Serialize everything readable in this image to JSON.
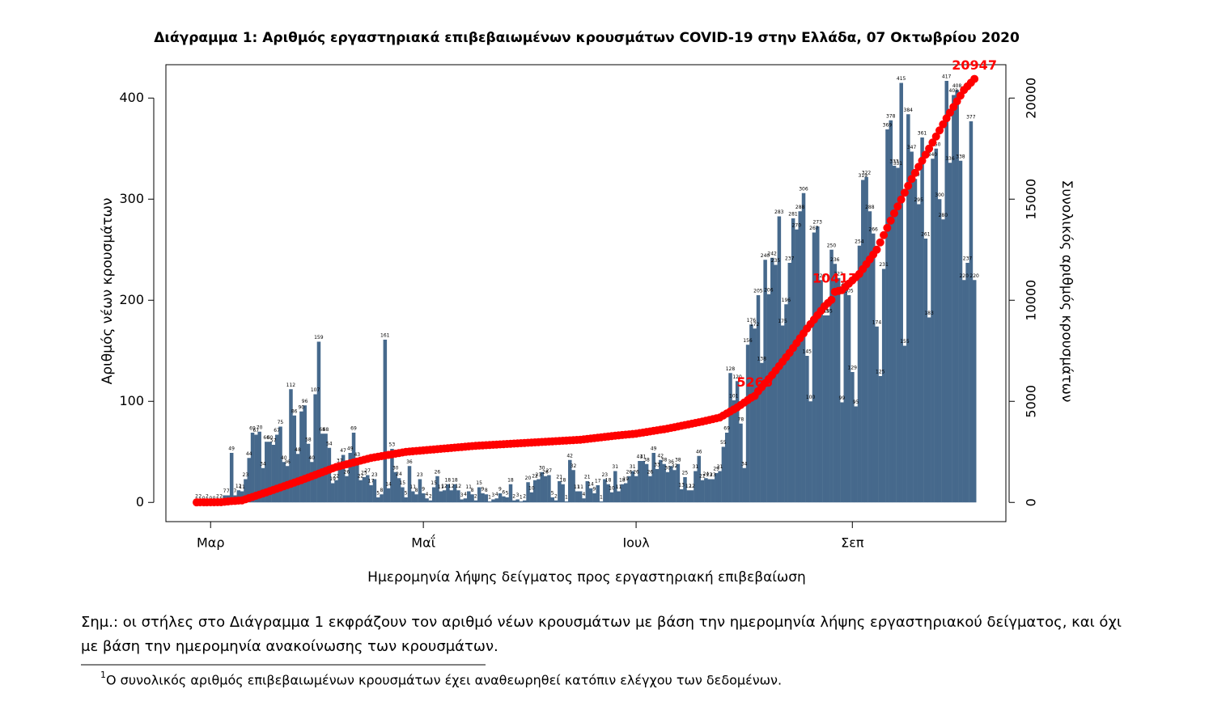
{
  "chart_data": {
    "type": "bar",
    "title": "Διάγραμμα 1: Αριθμός εργαστηριακά επιβεβαιωμένων κρουσμάτων COVID-19 στην Ελλάδα, 07 Οκτωβρίου 2020",
    "x_label": "Ημερομηνία λήψης δείγματος προς εργαστηριακή επιβεβαίωση",
    "y_label": "Αριθμός νέων κρουσμάτων",
    "y2_label": "Συνολικός αριθμός κρουσμάτων",
    "categories": [
      null,
      null,
      null,
      null,
      "Μαρ",
      null,
      null,
      null,
      null,
      null,
      null,
      null,
      null,
      null,
      null,
      null,
      null,
      null,
      null,
      null,
      null,
      null,
      null,
      null,
      null,
      null,
      null,
      null,
      null,
      null,
      null,
      null,
      null,
      null,
      null,
      null,
      null,
      null,
      null,
      null,
      null,
      null,
      null,
      null,
      null,
      null,
      null,
      null,
      null,
      null,
      null,
      null,
      null,
      null,
      null,
      null,
      null,
      null,
      null,
      null,
      null,
      null,
      null,
      null,
      null,
      "Μαΐ",
      null,
      null,
      null,
      null,
      null,
      null,
      null,
      null,
      null,
      null,
      null,
      null,
      null,
      null,
      null,
      null,
      null,
      null,
      null,
      null,
      null,
      null,
      null,
      null,
      null,
      null,
      null,
      null,
      null,
      null,
      null,
      null,
      null,
      null,
      null,
      null,
      null,
      null,
      null,
      null,
      null,
      null,
      null,
      null,
      null,
      null,
      null,
      null,
      null,
      null,
      null,
      null,
      null,
      null,
      null,
      null,
      null,
      null,
      null,
      null,
      "Ιουλ",
      null,
      null,
      null,
      null,
      null,
      null,
      null,
      null,
      null,
      null,
      null,
      null,
      null,
      null,
      null,
      null,
      null,
      null,
      null,
      null,
      null,
      null,
      null,
      null,
      null,
      null,
      null,
      null,
      null,
      null,
      null,
      null,
      null,
      null,
      null,
      null,
      null,
      null,
      null,
      null,
      null,
      null,
      null,
      null,
      null,
      null,
      null,
      null,
      null,
      null,
      null,
      null,
      null,
      null,
      null,
      null,
      null,
      null,
      null,
      null,
      null,
      "Σεπ",
      null,
      null,
      null,
      null,
      null,
      null,
      null,
      null,
      null,
      null,
      null,
      null,
      null,
      null,
      null,
      null,
      null,
      null,
      null,
      null,
      null,
      null,
      null,
      null,
      null,
      null,
      null,
      null,
      null,
      null,
      null,
      null,
      null,
      null,
      null
    ],
    "series": [
      {
        "type": "bar",
        "color": "#46698c",
        "show_value_labels": true,
        "values": [
          2,
          2,
          0,
          2,
          0,
          0,
          2,
          2,
          7,
          7,
          49,
          7,
          12,
          11,
          23,
          44,
          69,
          67,
          70,
          34,
          60,
          60,
          57,
          67,
          75,
          40,
          36,
          112,
          86,
          48,
          90,
          96,
          58,
          40,
          107,
          159,
          68,
          68,
          54,
          19,
          22,
          37,
          47,
          26,
          49,
          69,
          43,
          22,
          25,
          27,
          17,
          23,
          5,
          8,
          161,
          14,
          53,
          30,
          24,
          15,
          5,
          36,
          11,
          8,
          23,
          9,
          4,
          2,
          15,
          26,
          11,
          12,
          18,
          12,
          18,
          12,
          3,
          4,
          11,
          8,
          2,
          15,
          9,
          8,
          1,
          3,
          4,
          9,
          6,
          5,
          18,
          2,
          3,
          1,
          2,
          20,
          10,
          22,
          23,
          30,
          26,
          27,
          5,
          2,
          21,
          18,
          1,
          42,
          32,
          11,
          11,
          4,
          21,
          14,
          9,
          17,
          1,
          23,
          18,
          10,
          31,
          11,
          18,
          19,
          26,
          31,
          26,
          41,
          41,
          38,
          26,
          49,
          33,
          42,
          38,
          30,
          36,
          32,
          38,
          13,
          25,
          12,
          12,
          31,
          46,
          22,
          24,
          23,
          23,
          29,
          31,
          55,
          69,
          128,
          101,
          120,
          78,
          34,
          156,
          176,
          172,
          205,
          138,
          240,
          206,
          242,
          235,
          283,
          175,
          196,
          237,
          281,
          270,
          288,
          306,
          145,
          100,
          267,
          273,
          220,
          185,
          185,
          250,
          236,
          222,
          99,
          212,
          205,
          129,
          95,
          254,
          319,
          322,
          288,
          266,
          174,
          125,
          231,
          369,
          378,
          333,
          331,
          415,
          155,
          384,
          347,
          320,
          295,
          361,
          261,
          183,
          340,
          350,
          300,
          280,
          417,
          336,
          403,
          408,
          338,
          220,
          237,
          377,
          220
        ]
      },
      {
        "type": "line",
        "axis": "y2",
        "color": "#ff0000",
        "values": [
          3,
          4,
          4,
          7,
          7,
          7,
          9,
          10,
          31,
          45,
          66,
          73,
          89,
          100,
          157,
          214,
          271,
          329,
          386,
          443,
          500,
          560,
          620,
          680,
          740,
          800,
          860,
          920,
          980,
          1040,
          1100,
          1165,
          1230,
          1295,
          1360,
          1425,
          1490,
          1555,
          1620,
          1685,
          1750,
          1795,
          1840,
          1885,
          1930,
          1975,
          2020,
          2065,
          2110,
          2155,
          2200,
          2230,
          2260,
          2290,
          2320,
          2350,
          2380,
          2410,
          2440,
          2470,
          2500,
          2515,
          2530,
          2545,
          2560,
          2575,
          2590,
          2605,
          2620,
          2635,
          2650,
          2665,
          2680,
          2695,
          2710,
          2725,
          2740,
          2755,
          2770,
          2785,
          2800,
          2810,
          2820,
          2830,
          2840,
          2850,
          2860,
          2870,
          2880,
          2890,
          2900,
          2910,
          2920,
          2930,
          2940,
          2950,
          2960,
          2970,
          2980,
          2990,
          3000,
          3010,
          3020,
          3030,
          3040,
          3050,
          3060,
          3070,
          3080,
          3090,
          3100,
          3120,
          3140,
          3160,
          3180,
          3200,
          3220,
          3240,
          3260,
          3280,
          3300,
          3317,
          3333,
          3350,
          3367,
          3383,
          3400,
          3428,
          3456,
          3483,
          3511,
          3539,
          3567,
          3594,
          3622,
          3650,
          3685,
          3720,
          3755,
          3790,
          3825,
          3860,
          3895,
          3930,
          3965,
          4000,
          4040,
          4080,
          4120,
          4160,
          4200,
          4300,
          4400,
          4500,
          4600,
          4700,
          4820,
          4940,
          5060,
          5180,
          5266,
          5500,
          5700,
          5900,
          6100,
          6300,
          6520,
          6740,
          6960,
          7180,
          7400,
          7640,
          7880,
          8120,
          8360,
          8600,
          8820,
          9040,
          9260,
          9480,
          9700,
          9860,
          10020,
          10417,
          10460,
          10500,
          10660,
          10820,
          10980,
          11140,
          11300,
          11540,
          11780,
          12020,
          12260,
          12500,
          12860,
          13220,
          13580,
          13940,
          14300,
          14640,
          14980,
          15320,
          15660,
          16000,
          16300,
          16600,
          16900,
          17200,
          17500,
          17800,
          18100,
          18400,
          18700,
          19000,
          19280,
          19560,
          19840,
          20120,
          20400,
          20580,
          20760,
          20947
        ],
        "value_labels": [
          null,
          null,
          null,
          null,
          null,
          null,
          null,
          null,
          null,
          null,
          null,
          null,
          null,
          null,
          null,
          null,
          null,
          null,
          null,
          null,
          null,
          null,
          null,
          null,
          null,
          null,
          null,
          null,
          null,
          null,
          null,
          null,
          null,
          null,
          null,
          null,
          null,
          null,
          null,
          null,
          null,
          null,
          null,
          null,
          null,
          null,
          null,
          null,
          null,
          null,
          null,
          null,
          null,
          null,
          null,
          null,
          null,
          null,
          null,
          null,
          null,
          null,
          null,
          null,
          null,
          null,
          null,
          null,
          null,
          null,
          null,
          null,
          null,
          null,
          null,
          null,
          null,
          null,
          null,
          null,
          null,
          null,
          null,
          null,
          null,
          null,
          null,
          null,
          null,
          null,
          null,
          null,
          null,
          null,
          null,
          null,
          null,
          null,
          null,
          null,
          null,
          null,
          null,
          null,
          null,
          null,
          null,
          null,
          null,
          null,
          null,
          null,
          null,
          null,
          null,
          null,
          null,
          null,
          null,
          null,
          null,
          null,
          null,
          null,
          null,
          null,
          null,
          null,
          null,
          null,
          null,
          null,
          null,
          null,
          null,
          null,
          null,
          null,
          null,
          null,
          null,
          null,
          null,
          null,
          null,
          null,
          null,
          null,
          null,
          null,
          null,
          null,
          null,
          null,
          null,
          null,
          null,
          null,
          null,
          null,
          "5266",
          null,
          null,
          null,
          null,
          null,
          null,
          null,
          null,
          null,
          null,
          null,
          null,
          null,
          null,
          null,
          null,
          null,
          null,
          null,
          null,
          null,
          null,
          "10417",
          null,
          null,
          null,
          null,
          null,
          null,
          null,
          null,
          null,
          null,
          null,
          null,
          null,
          null,
          null,
          null,
          null,
          null,
          null,
          null,
          null,
          null,
          null,
          null,
          null,
          null,
          null,
          null,
          null,
          null,
          null,
          null,
          null,
          null,
          null,
          null,
          null,
          null,
          null,
          "20947"
        ]
      }
    ],
    "ylim": [
      -19,
      433
    ],
    "yticks": [
      0,
      100,
      200,
      300,
      400
    ],
    "y2lim": [
      -950,
      21650
    ],
    "y2ticks": [
      0,
      5000,
      10000,
      15000,
      20000
    ]
  },
  "note": [
    "Σημ.: οι στήλες στο Διάγραμμα 1 εκφράζουν τον αριθμό νέων κρουσμάτων με βάση την ημερομηνία λήψης εργαστηριακού δείγματος, και όχι",
    "με βάση την ημερομηνία ανακοίνωσης των κρουσμάτων."
  ],
  "footnote": {
    "mark": "1",
    "text": "Ο συνολικός αριθμός επιβεβαιωμένων κρουσμάτων έχει αναθεωρηθεί κατόπιν ελέγχου των δεδομένων."
  }
}
